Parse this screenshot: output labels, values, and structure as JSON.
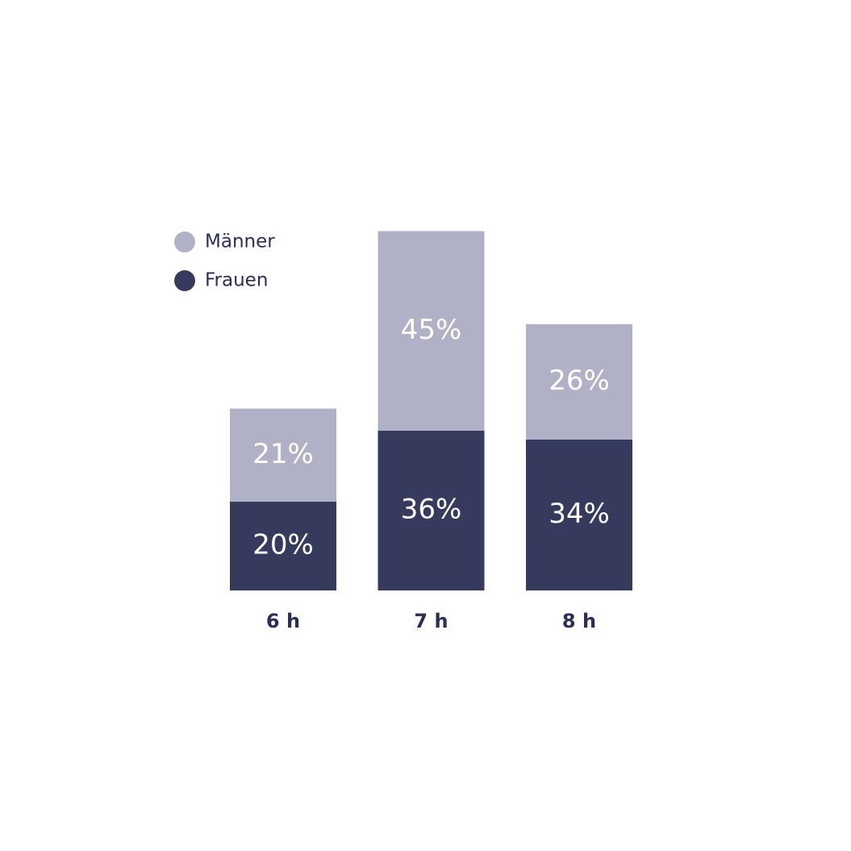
{
  "chart_data": {
    "type": "stacked_bar",
    "categories": [
      "6 h",
      "7 h",
      "8 h"
    ],
    "series": [
      {
        "name": "Frauen",
        "color": "#363b5e",
        "values": [
          20,
          36,
          34
        ],
        "value_labels": [
          "20%",
          "36%",
          "34%"
        ]
      },
      {
        "name": "Männer",
        "color": "#b0b1c6",
        "values": [
          21,
          45,
          26
        ],
        "value_labels": [
          "21%",
          "45%",
          "26%"
        ]
      }
    ],
    "legend": "top-left"
  }
}
